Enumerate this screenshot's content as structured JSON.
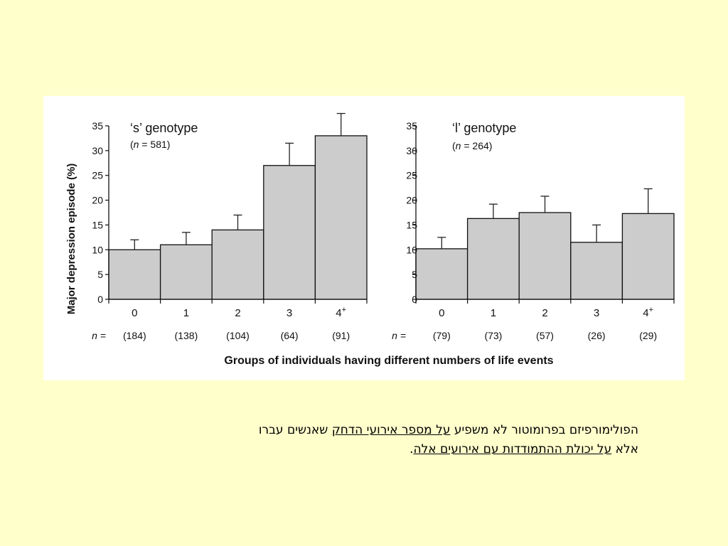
{
  "colors": {
    "background": "#ffffcc",
    "panel": "#ffffff",
    "bar_fill": "#cccccc",
    "bar_stroke": "#111111"
  },
  "chart_data": [
    {
      "type": "bar",
      "title": "‘s’ genotype",
      "n_label_prefix": "n",
      "n_label_value": "= 581)",
      "ylabel": "Major depression episode (%)",
      "xlabel": "Groups of individuals having different numbers of life events",
      "ylim": [
        0,
        35
      ],
      "yticks": [
        "0",
        "5",
        "10",
        "15",
        "20",
        "25",
        "30",
        "35"
      ],
      "categories": [
        "0",
        "1",
        "2",
        "3",
        "4+"
      ],
      "values": [
        10,
        11,
        14,
        27,
        33
      ],
      "error_upper": [
        12,
        13.5,
        17,
        31.5,
        37.5
      ],
      "n_prefix": "n =",
      "group_n": [
        "(184)",
        "(138)",
        "(104)",
        "(64)",
        "(91)"
      ]
    },
    {
      "type": "bar",
      "title": "‘l’ genotype",
      "n_label_prefix": "n",
      "n_label_value": "= 264)",
      "ylim": [
        0,
        35
      ],
      "yticks": [
        "0",
        "5",
        "10",
        "15",
        "20",
        "25",
        "30",
        "35"
      ],
      "categories": [
        "0",
        "1",
        "2",
        "3",
        "4+"
      ],
      "values": [
        10.2,
        16.3,
        17.5,
        11.5,
        17.3
      ],
      "error_upper": [
        12.5,
        19.2,
        20.8,
        15,
        22.3
      ],
      "n_prefix": "n =",
      "group_n": [
        "(79)",
        "(73)",
        "(57)",
        "(26)",
        "(29)"
      ]
    }
  ],
  "caption": {
    "line1_a": "הפולימורפיזם בפרומוטור לא משפיע ",
    "line1_u": "על מספר אירועי הדחק",
    "line1_b": " שאנשים עברו",
    "line2_a": "אלא ",
    "line2_u": "על יכולת ההתמודדות עם אירועים אלה",
    "line2_b": "."
  }
}
